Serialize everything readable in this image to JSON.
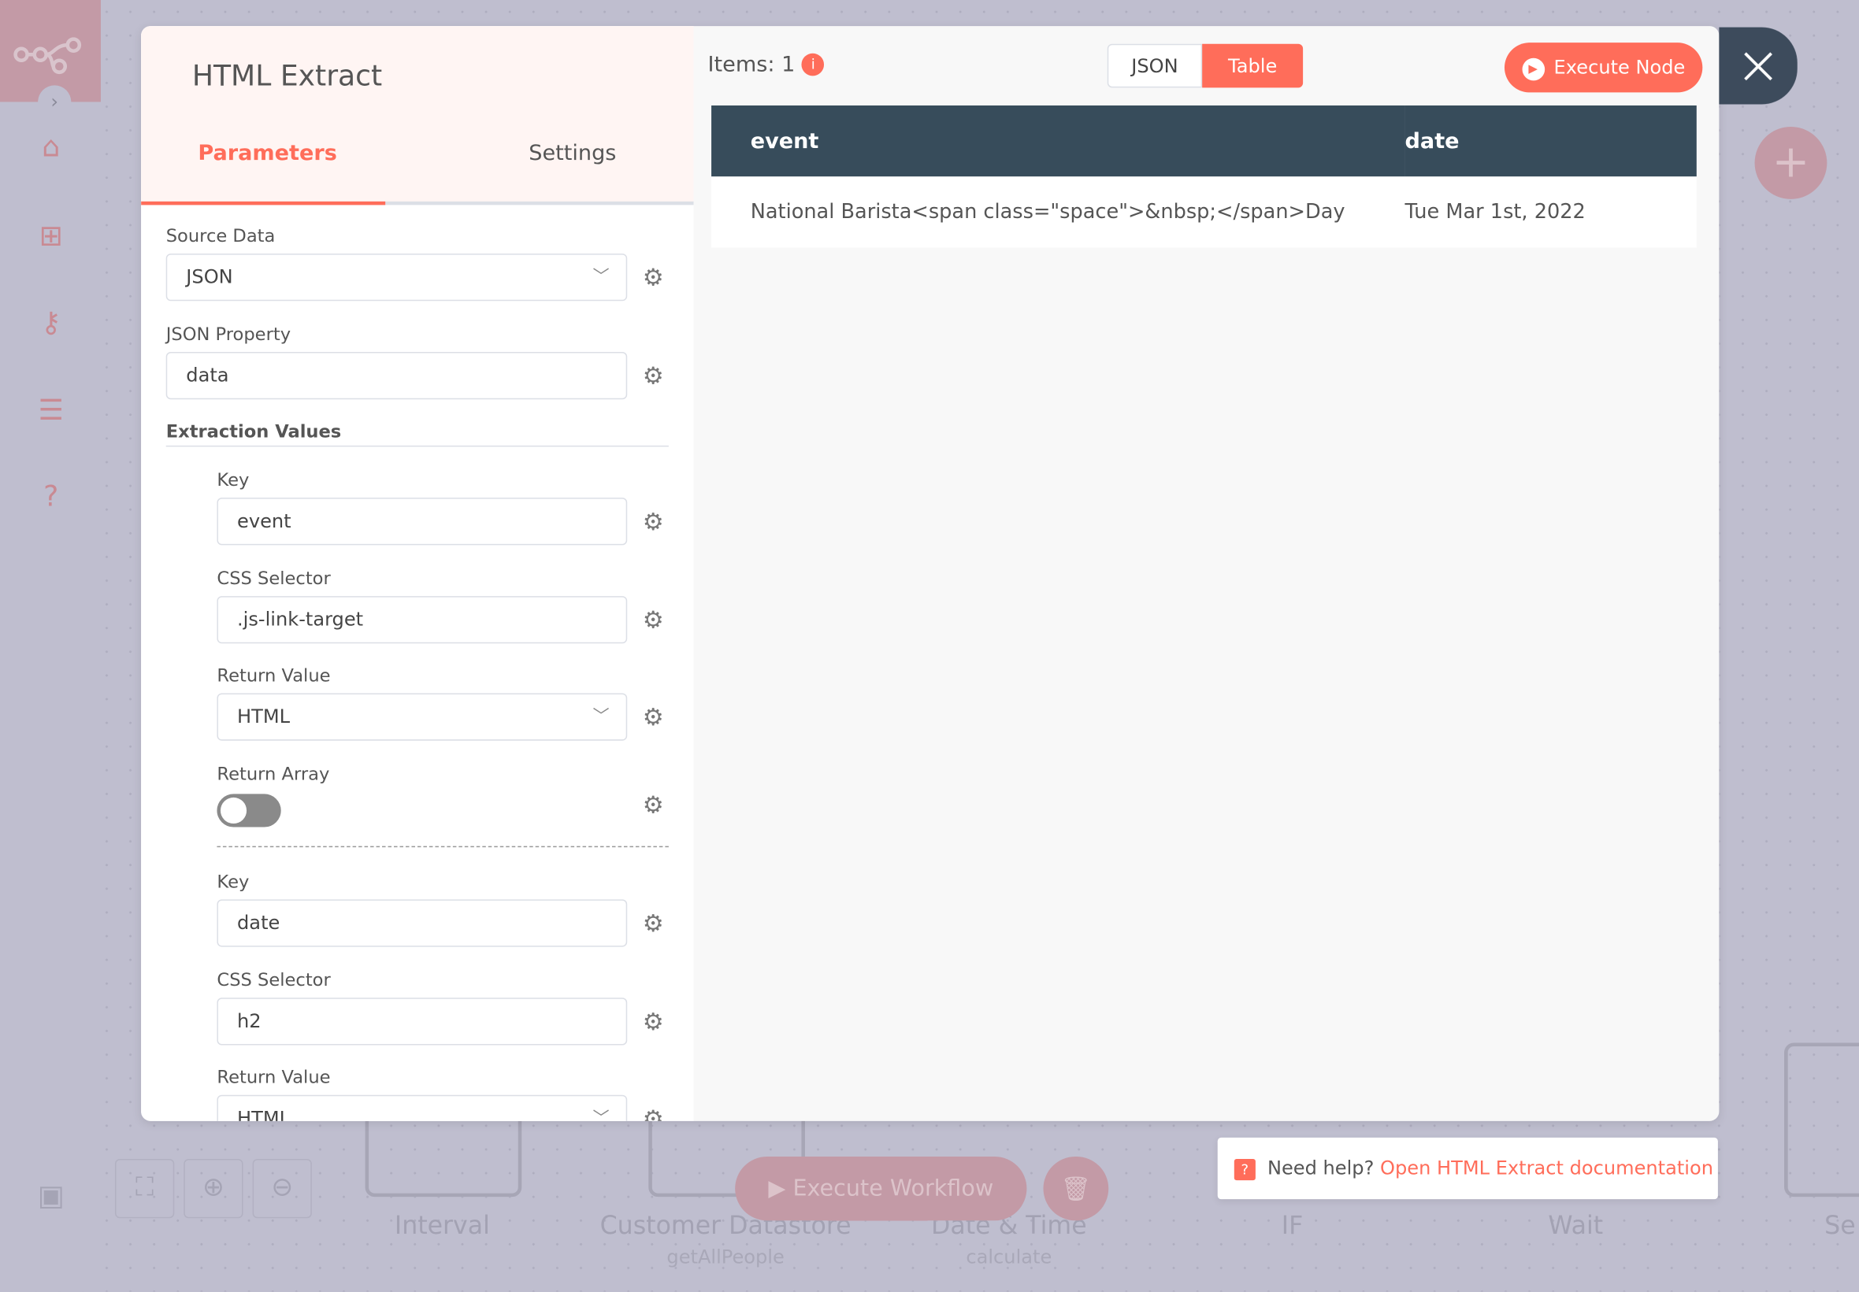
{
  "canvas": {
    "nodes": [
      {
        "label": "Interval",
        "sub": ""
      },
      {
        "label": "Customer Datastore",
        "sub": "getAllPeople"
      },
      {
        "label": "Date & Time",
        "sub": "calculate"
      },
      {
        "label": "IF",
        "sub": ""
      },
      {
        "label": "Wait",
        "sub": ""
      },
      {
        "label": "Se",
        "sub": ""
      }
    ],
    "execute_workflow": "Execute Workflow",
    "help_prefix": "Need help?",
    "help_link": "Open HTML Extract documentation"
  },
  "sidebar": {
    "icons": [
      "home-icon",
      "network-icon",
      "key-icon",
      "list-icon",
      "question-icon",
      "gift-icon"
    ]
  },
  "modal": {
    "title": "HTML Extract",
    "tabs": [
      {
        "label": "Parameters",
        "active": true
      },
      {
        "label": "Settings",
        "active": false
      }
    ],
    "params": {
      "source_data": {
        "label": "Source Data",
        "value": "JSON"
      },
      "json_property": {
        "label": "JSON Property",
        "value": "data"
      },
      "extraction_title": "Extraction Values",
      "values": [
        {
          "key_label": "Key",
          "key": "event",
          "css_label": "CSS Selector",
          "css": ".js-link-target",
          "ret_label": "Return Value",
          "ret": "HTML",
          "arr_label": "Return Array",
          "arr": false
        },
        {
          "key_label": "Key",
          "key": "date",
          "css_label": "CSS Selector",
          "css": "h2",
          "ret_label": "Return Value",
          "ret": "HTML"
        }
      ]
    },
    "output": {
      "items_label": "Items: 1",
      "view_json": "JSON",
      "view_table": "Table",
      "active_view": "Table",
      "execute_node": "Execute Node",
      "columns": [
        "event",
        "date"
      ],
      "rows": [
        [
          "National Barista<span class=\"space\">&nbsp;</span>Day",
          "Tue Mar 1st, 2022"
        ]
      ]
    }
  },
  "colors": {
    "accent": "#ff6d5a",
    "table_header": "#374c5b",
    "close_bg": "#3d4b5c"
  }
}
